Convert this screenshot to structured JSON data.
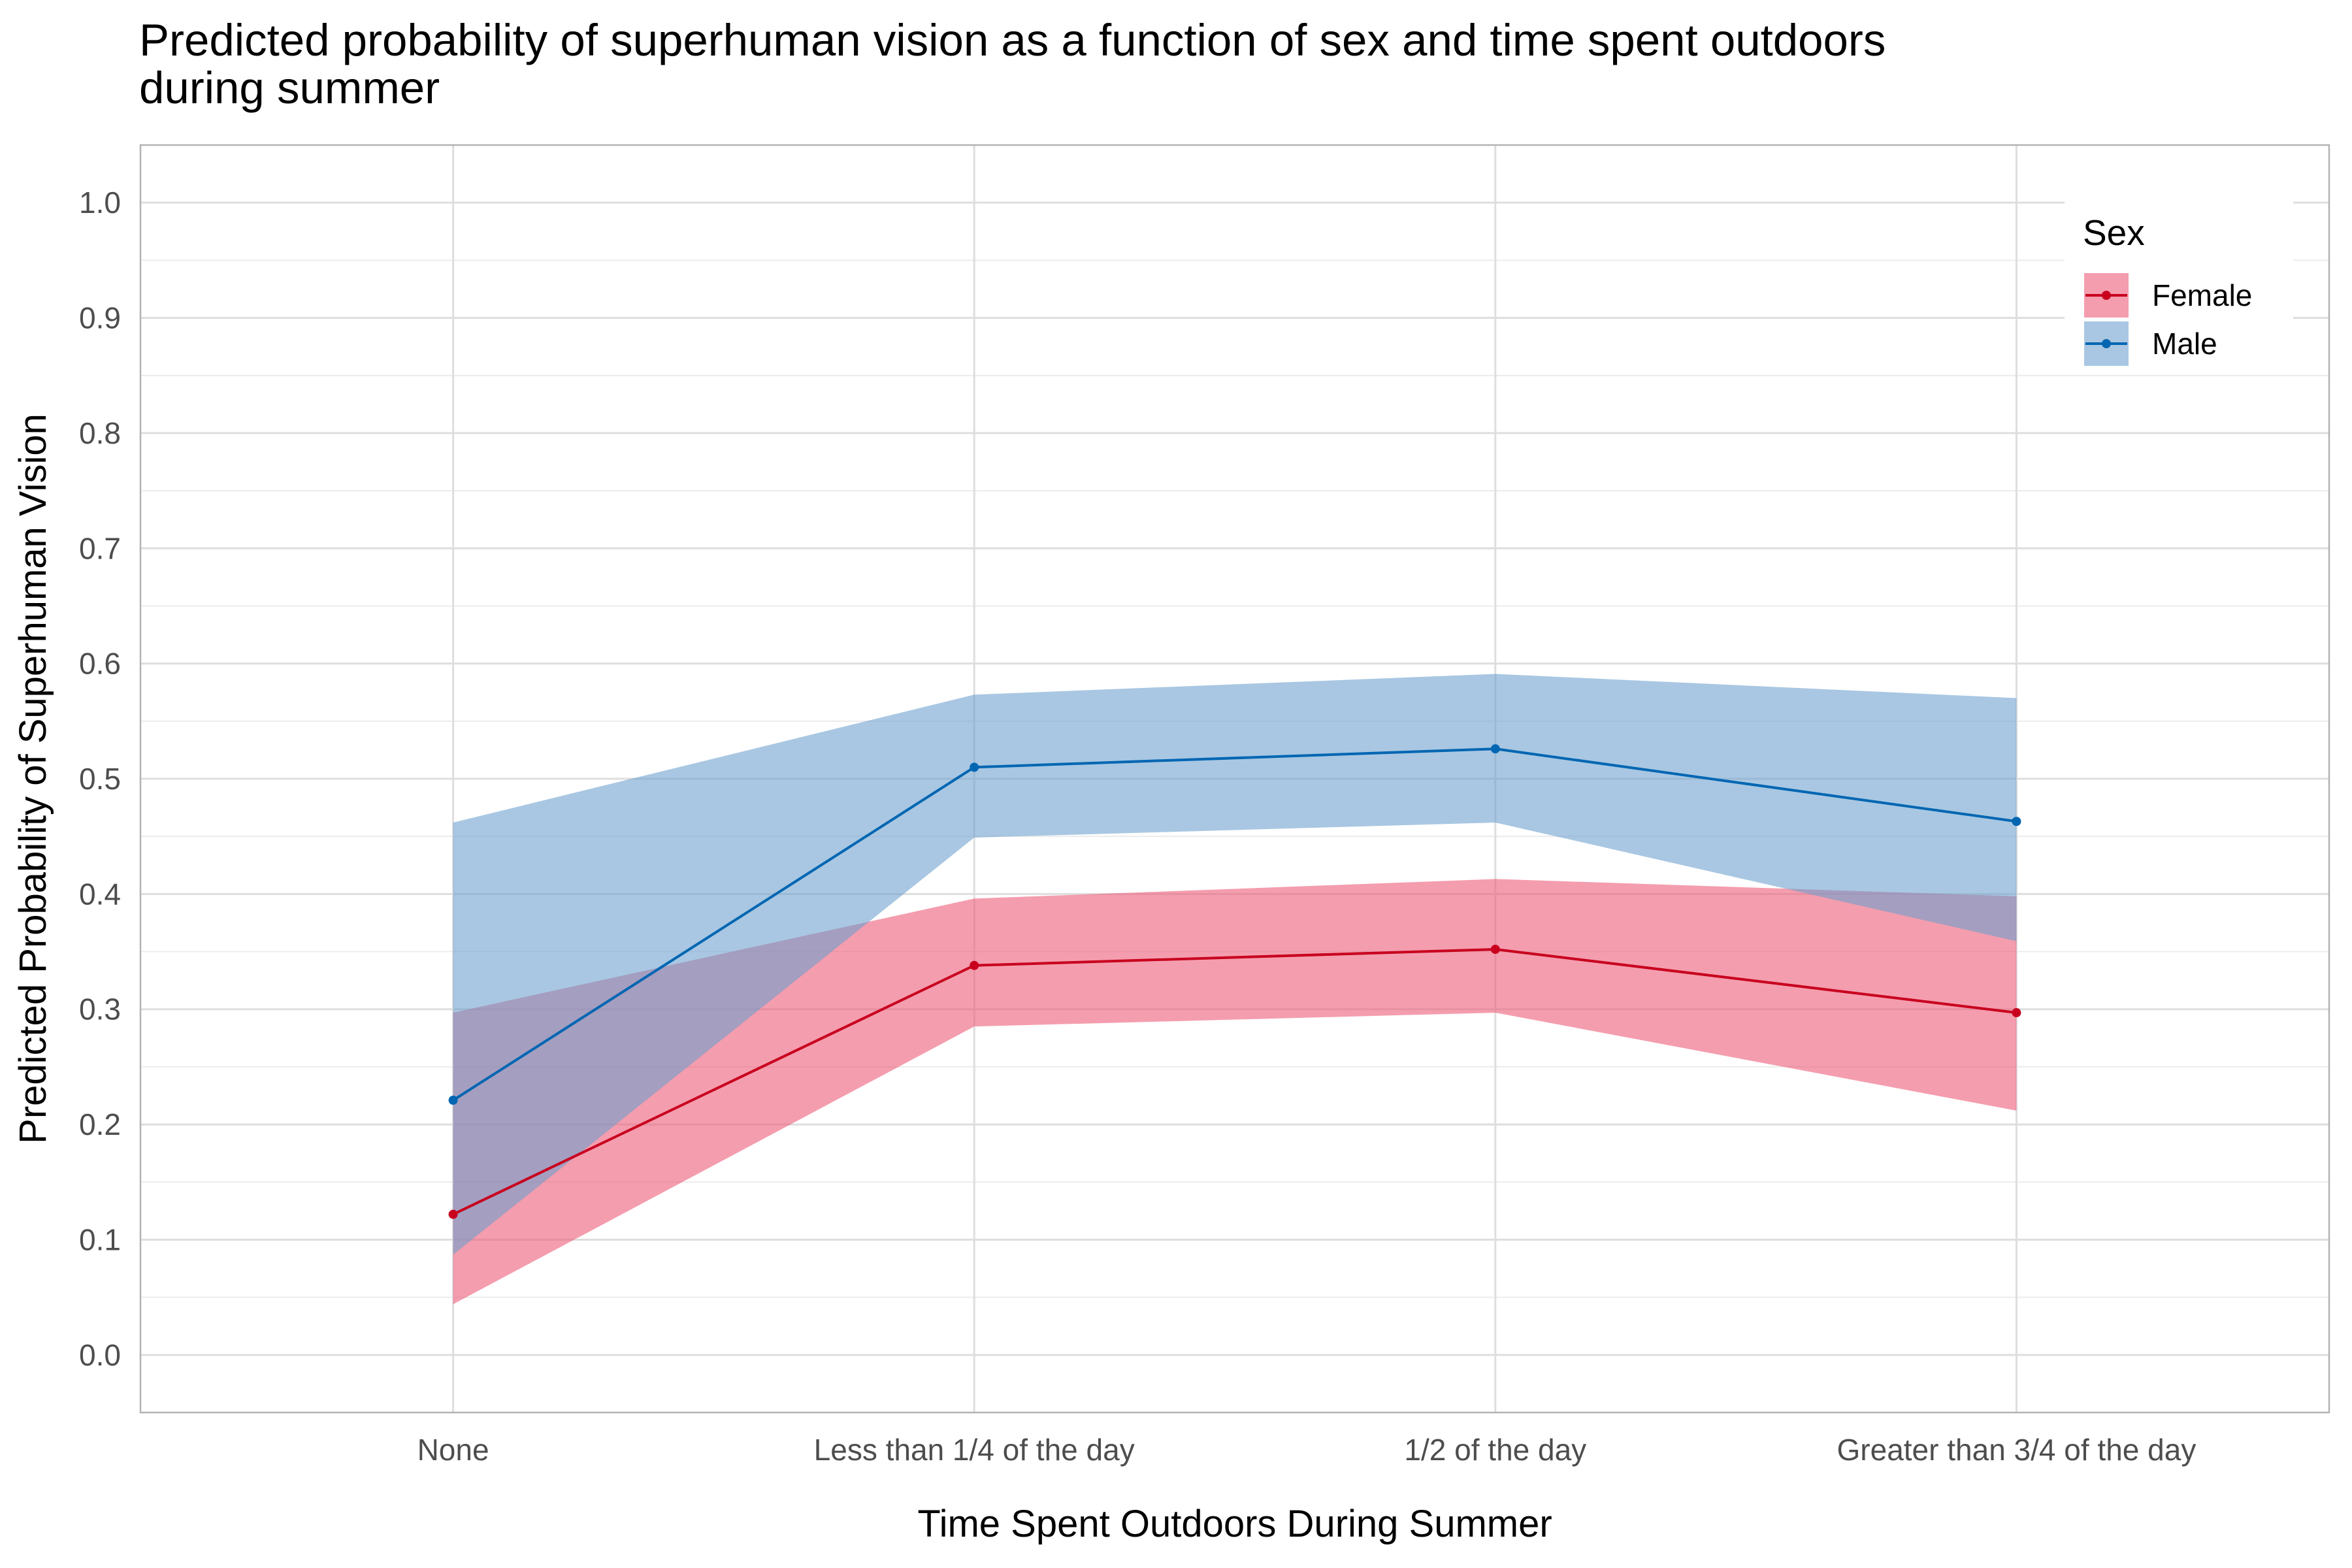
{
  "chart_data": {
    "type": "line",
    "title": "Predicted probability of superhuman vision as a function of sex and time spent outdoors during summer",
    "title_lines": [
      "Predicted probability of superhuman vision as a function of sex and time spent outdoors",
      "during summer"
    ],
    "xlabel": "Time Spent Outdoors During Summer",
    "ylabel": "Predicted Probability of Superhuman Vision",
    "categories": [
      "None",
      "Less than 1/4 of the day",
      "1/2 of the day",
      "Greater than 3/4 of the day"
    ],
    "ylim": [
      -0.05,
      1.05
    ],
    "yticks": [
      0.0,
      0.1,
      0.2,
      0.3,
      0.4,
      0.5,
      0.6,
      0.7,
      0.8,
      0.9,
      1.0
    ],
    "ytick_labels": [
      "0.0",
      "0.1",
      "0.2",
      "0.3",
      "0.4",
      "0.5",
      "0.6",
      "0.7",
      "0.8",
      "0.9",
      "1.0"
    ],
    "grid": true,
    "legend": {
      "title": "Sex",
      "position": "top-right"
    },
    "series": [
      {
        "name": "Female",
        "values": [
          0.122,
          0.338,
          0.352,
          0.297
        ],
        "lower": [
          0.044,
          0.285,
          0.297,
          0.212
        ],
        "upper": [
          0.297,
          0.396,
          0.413,
          0.398
        ],
        "color": "#c8001e",
        "fill": "#ec5c78",
        "fill_opacity": 0.6
      },
      {
        "name": "Male",
        "values": [
          0.221,
          0.51,
          0.526,
          0.463
        ],
        "lower": [
          0.087,
          0.449,
          0.462,
          0.359
        ],
        "upper": [
          0.462,
          0.573,
          0.591,
          0.57
        ],
        "color": "#0066b2",
        "fill": "#6b9fcd",
        "fill_opacity": 0.58
      }
    ]
  }
}
